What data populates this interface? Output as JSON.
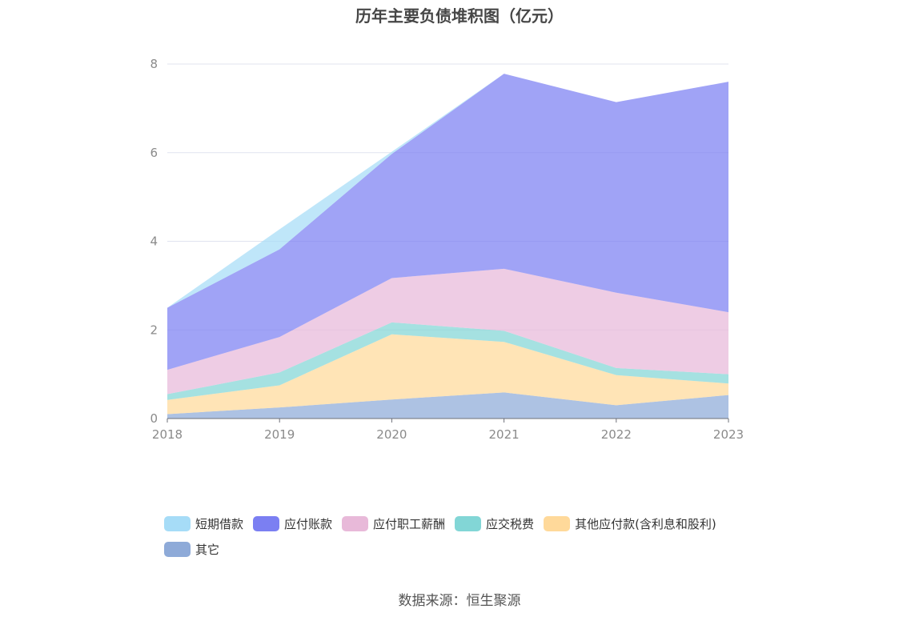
{
  "chart_data": {
    "type": "area",
    "stacked": true,
    "title": "历年主要负债堆积图（亿元）",
    "xlabel": "",
    "ylabel": "",
    "categories": [
      "2018",
      "2019",
      "2020",
      "2021",
      "2022",
      "2023"
    ],
    "ylim": [
      0,
      8
    ],
    "yticks": [
      "0",
      "2",
      "4",
      "6",
      "8"
    ],
    "grid": true,
    "legend_position": "bottom",
    "series": [
      {
        "name": "短期借款",
        "color": "#a6dcf7",
        "values": [
          0,
          0.45,
          0.05,
          0,
          0,
          0
        ]
      },
      {
        "name": "应付账款",
        "color": "#7b7ff2",
        "values": [
          1.4,
          1.98,
          2.8,
          4.4,
          4.3,
          5.2
        ]
      },
      {
        "name": "应付职工薪酬",
        "color": "#e8b9d9",
        "values": [
          0.55,
          0.8,
          1.0,
          1.4,
          1.7,
          1.4
        ]
      },
      {
        "name": "应交税费",
        "color": "#82d6d6",
        "values": [
          0.13,
          0.29,
          0.27,
          0.25,
          0.16,
          0.21
        ]
      },
      {
        "name": "其他应付款(含利息和股利)",
        "color": "#ffd99a",
        "values": [
          0.32,
          0.5,
          1.47,
          1.14,
          0.68,
          0.26
        ]
      },
      {
        "name": "其它",
        "color": "#8eaad8",
        "values": [
          0.1,
          0.25,
          0.43,
          0.59,
          0.3,
          0.53
        ]
      }
    ]
  },
  "source_text": "数据来源：恒生聚源"
}
